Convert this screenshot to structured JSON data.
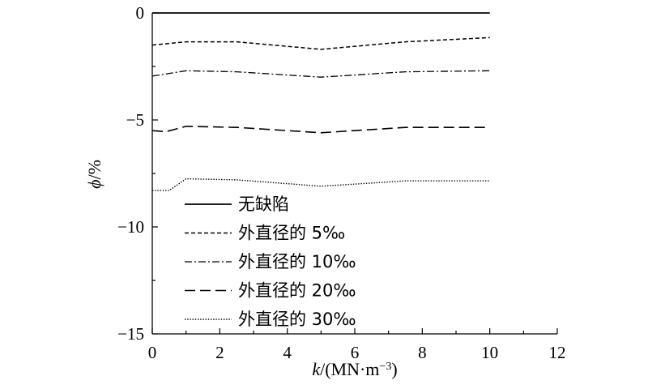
{
  "chart_data": {
    "type": "line",
    "xlabel_var": "k",
    "xlabel_unit": "/(MN·m",
    "xlabel_sup": "−3",
    "xlabel_close": ")",
    "ylabel_var": "ϕ",
    "ylabel_unit": "/%",
    "xlim": [
      0,
      12
    ],
    "ylim": [
      -15,
      0
    ],
    "xticks": [
      "0",
      "2",
      "4",
      "6",
      "8",
      "10",
      "12"
    ],
    "yticks": [
      "0",
      "−5",
      "−10",
      "−15"
    ],
    "grid": false,
    "legend_position": "bottom-left",
    "series": [
      {
        "name": "无缺陷",
        "style": "solid",
        "x": [
          0,
          10
        ],
        "y": [
          0,
          0
        ]
      },
      {
        "name": "外直径的 5‰",
        "style": "dashed-short",
        "x": [
          0,
          1,
          2.5,
          5,
          7.5,
          10
        ],
        "y": [
          -1.5,
          -1.35,
          -1.35,
          -1.7,
          -1.35,
          -1.15
        ]
      },
      {
        "name": "外直径的 10‰",
        "style": "dash-dot",
        "x": [
          0,
          1,
          2.5,
          5,
          7.5,
          10
        ],
        "y": [
          -2.95,
          -2.7,
          -2.75,
          -3.0,
          -2.75,
          -2.7
        ]
      },
      {
        "name": "外直径的 20‰",
        "style": "dashed-long",
        "x": [
          0,
          0.4,
          1,
          2.5,
          5,
          7.5,
          10
        ],
        "y": [
          -5.5,
          -5.55,
          -5.3,
          -5.35,
          -5.6,
          -5.35,
          -5.35
        ]
      },
      {
        "name": "外直径的 30‰",
        "style": "dotted",
        "x": [
          0,
          0.5,
          1,
          2.5,
          5,
          7.5,
          10
        ],
        "y": [
          -8.3,
          -8.3,
          -7.75,
          -7.8,
          -8.1,
          -7.85,
          -7.85
        ]
      }
    ]
  }
}
